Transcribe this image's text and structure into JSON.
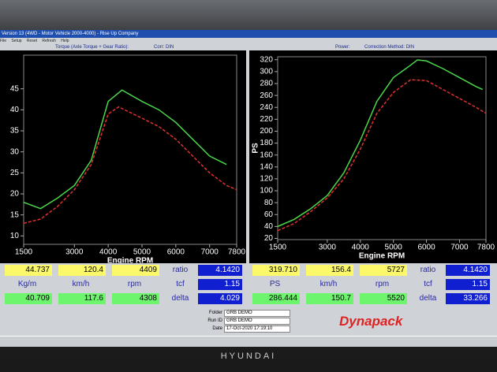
{
  "window": {
    "title": "Version 13 (4WD - Motor Vehicle 2000-4000) - Rise Up Company",
    "menu": [
      "File",
      "Setup",
      "Reset",
      "Refresh",
      "Help"
    ],
    "torque_header": "Torque (Axle Torque + Gear Ratio):",
    "torque_corr": "Corr: DIN",
    "power_header": "Power:",
    "power_corr": "Correction Method: DIN"
  },
  "chart_data": [
    {
      "type": "line",
      "x_label": "Engine RPM",
      "xlim": [
        1500,
        7800
      ],
      "xticks": [
        1500,
        3000,
        4000,
        5000,
        6000,
        7000,
        7800
      ],
      "ylim": [
        8,
        53
      ],
      "yticks": [
        10,
        15,
        20,
        25,
        30,
        35,
        40,
        45
      ],
      "series": [
        {
          "color": "#4cd64c",
          "x": [
            1500,
            2000,
            2500,
            3000,
            3500,
            4000,
            4409,
            5000,
            5500,
            6000,
            6500,
            7000,
            7500
          ],
          "values": [
            18,
            16.5,
            19,
            22,
            28,
            42,
            44.7,
            42,
            40,
            37,
            33,
            29,
            27
          ]
        },
        {
          "color": "#e03030",
          "x": [
            1500,
            2000,
            2500,
            3000,
            3500,
            4000,
            4308,
            5000,
            5500,
            6000,
            6500,
            7000,
            7500,
            7800
          ],
          "values": [
            13,
            14,
            17,
            21,
            27,
            39,
            40.7,
            38,
            36,
            33,
            29,
            25,
            22,
            21
          ]
        }
      ]
    },
    {
      "type": "line",
      "x_label": "Engine RPM",
      "y_label": "PS",
      "xlim": [
        1500,
        7800
      ],
      "xticks": [
        1500,
        3000,
        4000,
        5000,
        6000,
        7000,
        7800
      ],
      "ylim": [
        18,
        325
      ],
      "yticks": [
        20,
        40,
        60,
        80,
        100,
        120,
        140,
        160,
        180,
        200,
        220,
        240,
        260,
        280,
        300,
        320
      ],
      "series": [
        {
          "color": "#4cd64c",
          "x": [
            1500,
            2000,
            2500,
            3000,
            3500,
            4000,
            4500,
            5000,
            5500,
            5727,
            6000,
            6500,
            7000,
            7500,
            7700
          ],
          "values": [
            40,
            52,
            70,
            92,
            130,
            185,
            250,
            290,
            310,
            319.7,
            318,
            305,
            290,
            275,
            270
          ]
        },
        {
          "color": "#e03030",
          "x": [
            1500,
            2000,
            2500,
            3000,
            3500,
            4000,
            4500,
            5000,
            5520,
            6000,
            6500,
            7000,
            7500,
            7800
          ],
          "values": [
            33,
            45,
            65,
            88,
            120,
            170,
            230,
            265,
            286.4,
            285,
            270,
            255,
            240,
            230
          ]
        }
      ]
    }
  ],
  "readouts": [
    {
      "row1": [
        "44.737",
        "120.4",
        "4409"
      ],
      "labels": [
        "Kg/m",
        "km/h",
        "rpm"
      ],
      "row3": [
        "40.709",
        "117.6",
        "4308"
      ],
      "side_labels": [
        "ratio",
        "tcf",
        "delta"
      ],
      "side_values": [
        "4.1420",
        "1.15",
        "4.029"
      ]
    },
    {
      "row1": [
        "319.710",
        "156.4",
        "5727"
      ],
      "labels": [
        "PS",
        "km/h",
        "rpm"
      ],
      "row3": [
        "286.444",
        "150.7",
        "5520"
      ],
      "side_labels": [
        "ratio",
        "tcf",
        "delta"
      ],
      "side_values": [
        "4.1420",
        "1.15",
        "33.266"
      ]
    }
  ],
  "info": {
    "folder_label": "Folder",
    "folder": "GRB DEMO",
    "run_label": "Run ID",
    "run": "GRB DEMO",
    "date_label": "Date",
    "date": "17-Oct-2020 17:19:10",
    "logo": "Dynapack"
  },
  "monitor_brand": "HYUNDAI"
}
